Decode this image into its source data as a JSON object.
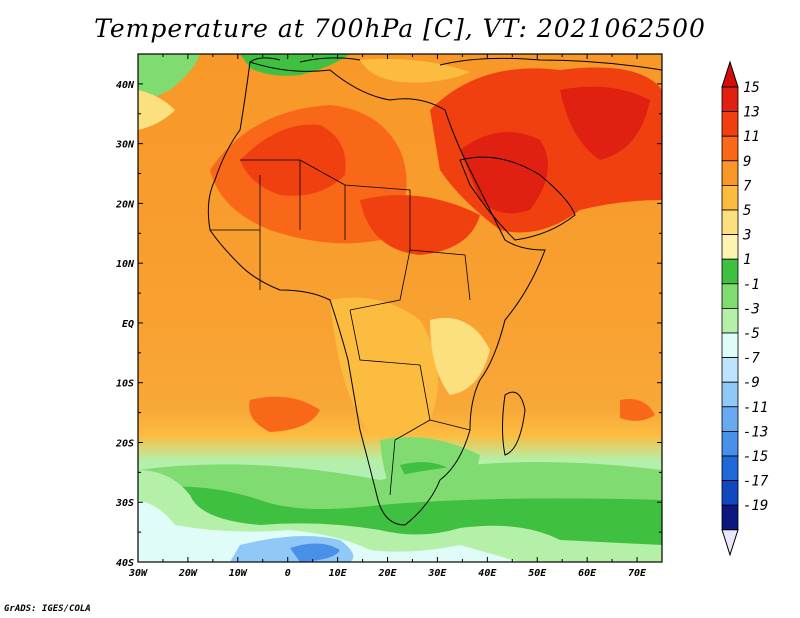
{
  "title": "Temperature at 700hPa [C], VT: 2021062500",
  "credit": "GrADS: IGES/COLA",
  "map": {
    "lon_labels": [
      "30W",
      "20W",
      "10W",
      "0",
      "10E",
      "20E",
      "30E",
      "40E",
      "50E",
      "60E",
      "70E"
    ],
    "lat_labels": [
      "40N",
      "30N",
      "20N",
      "10N",
      "EQ",
      "10S",
      "20S",
      "30S",
      "40S"
    ],
    "lon_range": [
      -30,
      75
    ],
    "lat_range": [
      -40,
      45
    ]
  },
  "colorbar": {
    "labels": [
      "15",
      "13",
      "11",
      "9",
      "7",
      "5",
      "3",
      "1",
      "-1",
      "-3",
      "-5",
      "-7",
      "-9",
      "-11",
      "-13",
      "-15",
      "-17",
      "-19"
    ],
    "colors": [
      "#e02010",
      "#f04010",
      "#f86818",
      "#f89828",
      "#fcbc40",
      "#fce080",
      "#fcf4b0",
      "#40c040",
      "#80dc70",
      "#b4f0a8",
      "#e0fcf8",
      "#bce4fc",
      "#90c8f8",
      "#68aaf0",
      "#4890e8",
      "#2068d8",
      "#1048c0",
      "#0c1880"
    ],
    "top_color": "#d01008",
    "bottom_color": "#e8e8fc"
  }
}
